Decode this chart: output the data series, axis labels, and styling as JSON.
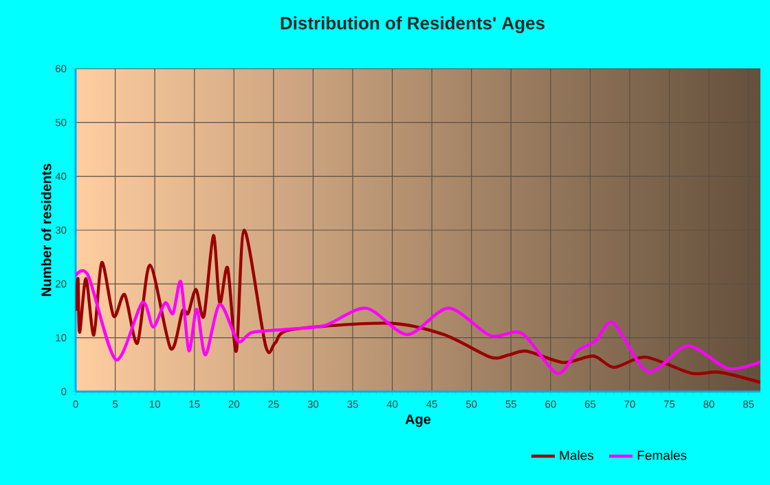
{
  "chart_data": {
    "type": "line",
    "title": "Distribution of Residents' Ages",
    "xlabel": "Age",
    "ylabel": "Number of residents",
    "xlim": [
      0,
      86.5
    ],
    "xticks": [
      0,
      5,
      10,
      15,
      20,
      25,
      30,
      35,
      40,
      45,
      50,
      55,
      60,
      65,
      70,
      75,
      80,
      85
    ],
    "ylim": [
      0,
      60
    ],
    "yticks": [
      0,
      10,
      20,
      30,
      40,
      50,
      60
    ],
    "grid": true,
    "legend": "bottom",
    "line_style": "solid",
    "series": [
      {
        "name": "Males",
        "color": "#990000",
        "x": [
          0,
          0.3,
          0.5,
          1.3,
          2.3,
          3.3,
          4.8,
          6.2,
          7.8,
          9.4,
          12,
          13.5,
          14.2,
          15.2,
          16.2,
          17.4,
          18.2,
          19.2,
          20.3,
          21.3,
          24,
          25.2,
          27.2,
          39.6,
          46.5,
          52.4,
          54.7,
          57,
          61.6,
          65.4,
          68,
          72,
          77.8,
          81.3,
          86.5
        ],
        "values": [
          15,
          21,
          11,
          21,
          10.5,
          24,
          14,
          18,
          9,
          23.5,
          8,
          15,
          14.5,
          19,
          14,
          29,
          16.5,
          23,
          7.5,
          30,
          8.5,
          9,
          11.5,
          12.7,
          10.6,
          6.4,
          6.8,
          7.5,
          5.4,
          6.6,
          4.5,
          6.4,
          3.4,
          3.6,
          1.7
        ]
      },
      {
        "name": "Females",
        "color": "#ff00ff",
        "x": [
          0,
          1.6,
          5.1,
          8.4,
          9.8,
          11.3,
          12.3,
          13.3,
          14.3,
          15.3,
          16.4,
          18.2,
          20.5,
          22.3,
          26.9,
          31.5,
          36.7,
          41.9,
          47.1,
          52.4,
          56.4,
          60.8,
          63.4,
          65.7,
          67.9,
          72.3,
          77.3,
          82.4,
          86.5
        ],
        "values": [
          21.5,
          21.5,
          5.9,
          16.5,
          12,
          16.5,
          14.5,
          20.4,
          7.6,
          15.3,
          6.8,
          16.2,
          9.4,
          11,
          11.6,
          12.3,
          15.5,
          10.6,
          15.5,
          10.4,
          10.8,
          3.4,
          7.6,
          9.4,
          12.8,
          3.7,
          8.5,
          4.3,
          5.5
        ]
      }
    ]
  }
}
